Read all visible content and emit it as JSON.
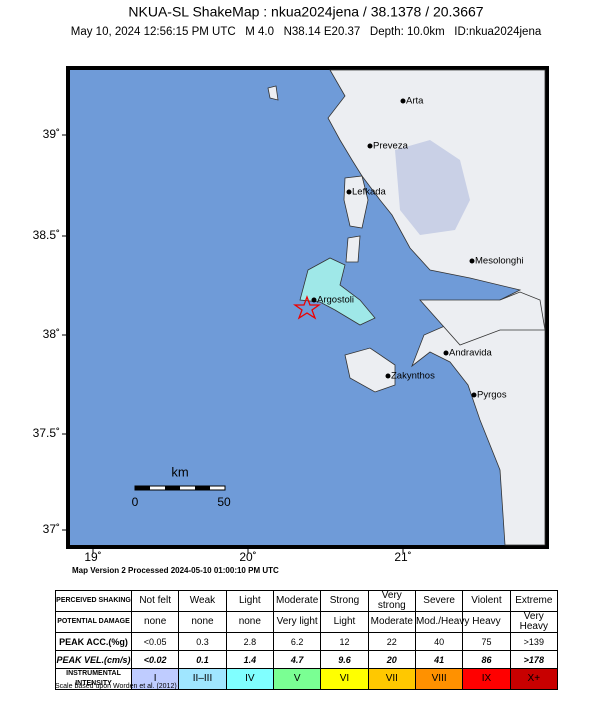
{
  "header": {
    "title": "NKUA-SL ShakeMap : nkua2024jena / 38.1378 / 20.3667",
    "subtitle": "May 10, 2024 12:56:15 PM UTC   M 4.0   N38.14 E20.37   Depth: 10.0km   ID:nkua2024jena"
  },
  "map": {
    "lat_ticks": [
      "39˚",
      "38.5˚",
      "38˚",
      "37.5˚",
      "37˚"
    ],
    "lon_ticks": [
      "19˚",
      "20˚",
      "21˚"
    ],
    "cities": [
      "Arta",
      "Preveza",
      "Lefkada",
      "Mesolonghi",
      "Argostoli",
      "Andravida",
      "Zakynthos",
      "Pyrgos"
    ],
    "scale": {
      "unit": "km",
      "labels": [
        "0",
        "50"
      ]
    },
    "version": "Map Version 2 Processed 2024-05-10 01:00:10 PM UTC"
  },
  "legend": {
    "rows": [
      [
        "PERCEIVED SHAKING",
        "Not felt",
        "Weak",
        "Light",
        "Moderate",
        "Strong",
        "Very strong",
        "Severe",
        "Violent",
        "Extreme"
      ],
      [
        "POTENTIAL DAMAGE",
        "none",
        "none",
        "none",
        "Very light",
        "Light",
        "Moderate",
        "Mod./Heavy",
        "Heavy",
        "Very Heavy"
      ],
      [
        "PEAK ACC.(%g)",
        "<0.05",
        "0.3",
        "2.8",
        "6.2",
        "12",
        "22",
        "40",
        "75",
        ">139"
      ],
      [
        "PEAK VEL.(cm/s)",
        "<0.02",
        "0.1",
        "1.4",
        "4.7",
        "9.6",
        "20",
        "41",
        "86",
        ">178"
      ],
      [
        "INSTRUMENTAL INTENSITY",
        "I",
        "II–III",
        "IV",
        "V",
        "VI",
        "VII",
        "VIII",
        "IX",
        "X+"
      ]
    ]
  },
  "footer": "Scale based upon Worden et al. (2012)"
}
